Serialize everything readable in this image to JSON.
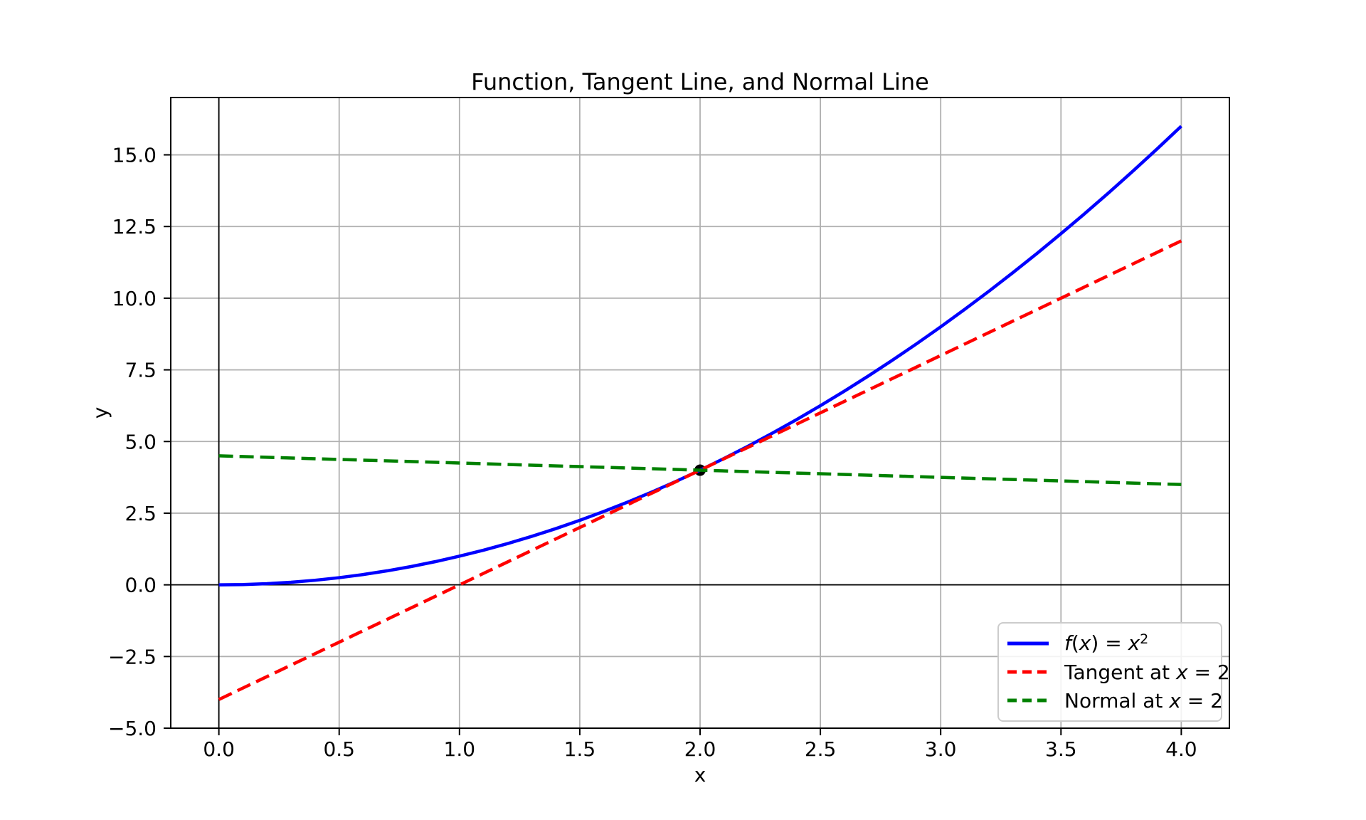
{
  "chart_data": {
    "type": "line",
    "title": "Function, Tangent Line, and Normal Line",
    "xlabel": "x",
    "ylabel": "y",
    "xlim": [
      -0.2,
      4.2
    ],
    "ylim": [
      -5,
      17
    ],
    "grid": true,
    "x_ticks": [
      0.0,
      0.5,
      1.0,
      1.5,
      2.0,
      2.5,
      3.0,
      3.5,
      4.0
    ],
    "x_tick_labels": [
      "0.0",
      "0.5",
      "1.0",
      "1.5",
      "2.0",
      "2.5",
      "3.0",
      "3.5",
      "4.0"
    ],
    "y_ticks": [
      -5.0,
      -2.5,
      0.0,
      2.5,
      5.0,
      7.5,
      10.0,
      12.5,
      15.0
    ],
    "y_tick_labels": [
      "−5.0",
      "−2.5",
      "0.0",
      "2.5",
      "5.0",
      "7.5",
      "10.0",
      "12.5",
      "15.0"
    ],
    "reference_lines": {
      "vertical_x": 0,
      "horizontal_y": 0
    },
    "colors": {
      "grid": "#b0b0b0",
      "axis": "#000000",
      "function": "#0000ff",
      "tangent": "#ff0000",
      "normal": "#008000",
      "marker": "#000000",
      "legend_border": "#cccccc"
    },
    "marker_point": {
      "x": 2,
      "y": 4,
      "color": "#000000"
    },
    "series": [
      {
        "key": "function",
        "name": "f(x) = x²",
        "color": "#0000ff",
        "style": "solid",
        "points": [
          [
            0.0,
            0.0
          ],
          [
            0.1,
            0.01
          ],
          [
            0.2,
            0.04
          ],
          [
            0.3,
            0.09
          ],
          [
            0.4,
            0.16
          ],
          [
            0.5,
            0.25
          ],
          [
            0.6,
            0.36
          ],
          [
            0.7,
            0.49
          ],
          [
            0.8,
            0.64
          ],
          [
            0.9,
            0.81
          ],
          [
            1.0,
            1.0
          ],
          [
            1.1,
            1.21
          ],
          [
            1.2,
            1.44
          ],
          [
            1.3,
            1.69
          ],
          [
            1.4,
            1.96
          ],
          [
            1.5,
            2.25
          ],
          [
            1.6,
            2.56
          ],
          [
            1.7,
            2.89
          ],
          [
            1.8,
            3.24
          ],
          [
            1.9,
            3.61
          ],
          [
            2.0,
            4.0
          ],
          [
            2.1,
            4.41
          ],
          [
            2.2,
            4.84
          ],
          [
            2.3,
            5.29
          ],
          [
            2.4,
            5.76
          ],
          [
            2.5,
            6.25
          ],
          [
            2.6,
            6.76
          ],
          [
            2.7,
            7.29
          ],
          [
            2.8,
            7.84
          ],
          [
            2.9,
            8.41
          ],
          [
            3.0,
            9.0
          ],
          [
            3.1,
            9.61
          ],
          [
            3.2,
            10.24
          ],
          [
            3.3,
            10.89
          ],
          [
            3.4,
            11.56
          ],
          [
            3.5,
            12.25
          ],
          [
            3.6,
            12.96
          ],
          [
            3.7,
            13.69
          ],
          [
            3.8,
            14.44
          ],
          [
            3.9,
            15.21
          ],
          [
            4.0,
            16.0
          ]
        ]
      },
      {
        "key": "tangent",
        "name": "Tangent at x = 2",
        "color": "#ff0000",
        "style": "dashed",
        "points": [
          [
            0,
            -4
          ],
          [
            4,
            12
          ]
        ]
      },
      {
        "key": "normal",
        "name": "Normal at x = 2",
        "color": "#008000",
        "style": "dashed",
        "points": [
          [
            0,
            4.5
          ],
          [
            4,
            3.5
          ]
        ]
      }
    ],
    "legend": {
      "position": "lower right",
      "entries": [
        {
          "key": "function",
          "label": "f(x) = x²",
          "color": "#0000ff",
          "style": "solid",
          "segments": [
            {
              "t": "f",
              "i": true
            },
            {
              "t": "(",
              "i": false
            },
            {
              "t": "x",
              "i": true
            },
            {
              "t": ") = ",
              "i": false
            },
            {
              "t": "x",
              "i": true
            },
            {
              "t": "2",
              "i": false,
              "sup": true
            }
          ]
        },
        {
          "key": "tangent",
          "label": "Tangent at x = 2",
          "color": "#ff0000",
          "style": "dashed",
          "segments": [
            {
              "t": "Tangent at ",
              "i": false
            },
            {
              "t": "x",
              "i": true
            },
            {
              "t": " = 2",
              "i": false
            }
          ]
        },
        {
          "key": "normal",
          "label": "Normal at x = 2",
          "color": "#008000",
          "style": "dashed",
          "segments": [
            {
              "t": "Normal at ",
              "i": false
            },
            {
              "t": "x",
              "i": true
            },
            {
              "t": " = 2",
              "i": false
            }
          ]
        }
      ]
    }
  }
}
